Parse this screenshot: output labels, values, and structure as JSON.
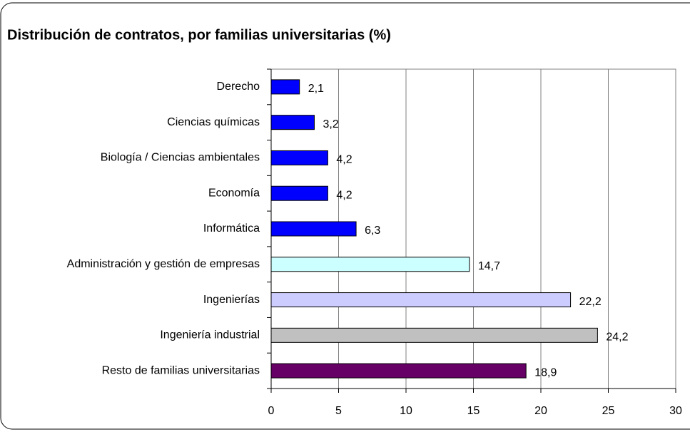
{
  "chart_data": {
    "type": "hbar",
    "title": "Distribución de contratos, por familias universitarias (%)",
    "categories": [
      "Derecho",
      "Ciencias químicas",
      "Biología / Ciencias ambientales",
      "Economía",
      "Informática",
      "Administración y gestión de empresas",
      "Ingenierías",
      "Ingeniería industrial",
      "Resto de familias universitarias"
    ],
    "values": [
      2.1,
      3.2,
      4.2,
      4.2,
      6.3,
      14.7,
      22.2,
      24.2,
      18.9
    ],
    "value_labels": [
      "2,1",
      "3,2",
      "4,2",
      "4,2",
      "6,3",
      "14,7",
      "22,2",
      "24,2",
      "18,9"
    ],
    "colors": [
      "#0000ff",
      "#0000ff",
      "#0000ff",
      "#0000ff",
      "#0000ff",
      "#ccffff",
      "#ccccff",
      "#c0c0c0",
      "#660066"
    ],
    "xlim": [
      0,
      30
    ],
    "xticks": [
      0,
      5,
      10,
      15,
      20,
      25,
      30
    ],
    "grid": true
  }
}
